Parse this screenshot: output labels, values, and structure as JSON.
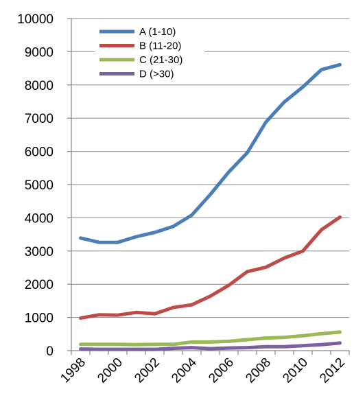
{
  "chart_data": {
    "type": "line",
    "title": "",
    "xlabel": "",
    "ylabel": "",
    "x": [
      1998,
      1999,
      2000,
      2001,
      2002,
      2003,
      2004,
      2005,
      2006,
      2007,
      2008,
      2009,
      2010,
      2011,
      2012
    ],
    "x_tick_labels": [
      "1998",
      "2000",
      "2002",
      "2004",
      "2006",
      "2008",
      "2010",
      "2012"
    ],
    "y_ticks": [
      0,
      1000,
      2000,
      3000,
      4000,
      5000,
      6000,
      7000,
      8000,
      9000,
      10000
    ],
    "ylim": [
      0,
      10000
    ],
    "grid": "horizontal",
    "legend_position": "top-left",
    "series": [
      {
        "name": "A (1-10)",
        "color": "#4a7ebb",
        "values": [
          3390,
          3260,
          3260,
          3430,
          3560,
          3740,
          4080,
          4700,
          5380,
          5960,
          6880,
          7490,
          7940,
          8460,
          8610
        ]
      },
      {
        "name": "B (11-20)",
        "color": "#be4b48",
        "values": [
          980,
          1080,
          1070,
          1150,
          1110,
          1300,
          1380,
          1640,
          1970,
          2380,
          2510,
          2790,
          3000,
          3640,
          4020
        ]
      },
      {
        "name": "C (21-30)",
        "color": "#98b954",
        "values": [
          190,
          190,
          190,
          180,
          190,
          190,
          260,
          260,
          280,
          330,
          380,
          400,
          450,
          510,
          560
        ]
      },
      {
        "name": "D (>30)",
        "color": "#7d60a0",
        "values": [
          50,
          40,
          40,
          40,
          40,
          70,
          90,
          60,
          80,
          90,
          120,
          120,
          150,
          180,
          230
        ]
      }
    ]
  }
}
